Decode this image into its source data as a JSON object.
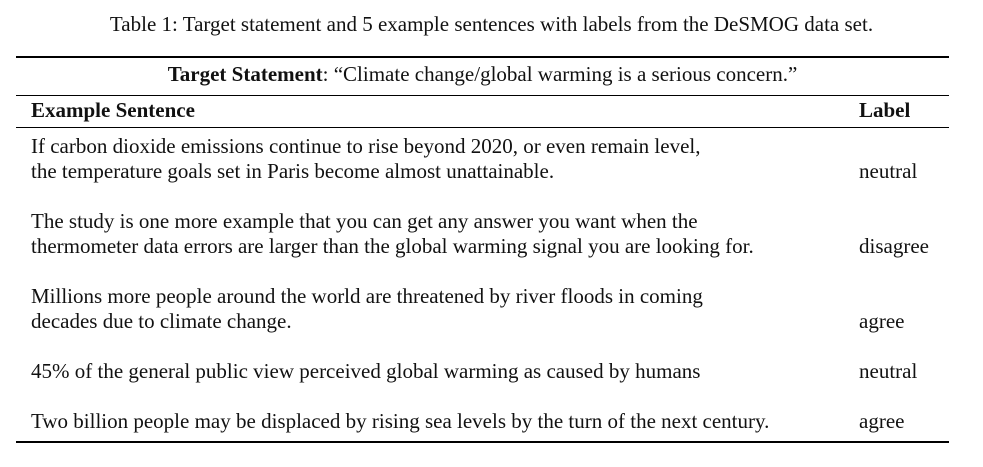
{
  "caption": "Table 1: Target statement and 5 example sentences with labels from the DeSMOG data set.",
  "target": {
    "label": "Target Statement",
    "text": ": “Climate change/global warming is a serious concern.”"
  },
  "headers": {
    "sentence": "Example Sentence",
    "label": "Label"
  },
  "rows": [
    {
      "lines": [
        "If carbon dioxide emissions continue to rise beyond 2020, or even remain level,",
        "the temperature goals set in Paris become almost unattainable."
      ],
      "label": "neutral"
    },
    {
      "lines": [
        "The study is one more example that you can get any answer you want when the",
        "thermometer data errors are larger than the global warming signal you are looking for."
      ],
      "label": "disagree"
    },
    {
      "lines": [
        "Millions more people around the world are threatened by river floods in coming",
        "decades due to climate change."
      ],
      "label": "agree"
    },
    {
      "lines": [
        "45% of the general public view perceived global warming as caused by humans"
      ],
      "label": "neutral"
    },
    {
      "lines": [
        "Two billion people may be displaced by rising sea levels by the turn of the next century."
      ],
      "label": "agree"
    }
  ]
}
